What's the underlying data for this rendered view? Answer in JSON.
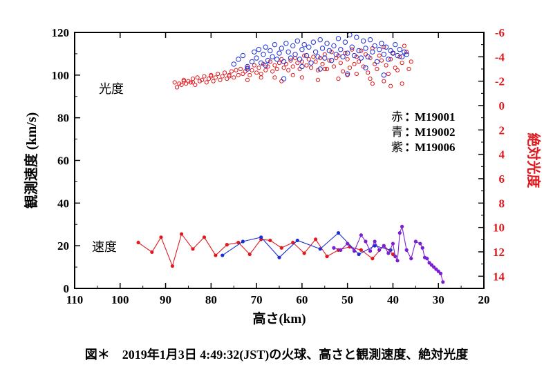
{
  "chart_data": {
    "type": "scatter",
    "title": "",
    "xlabel": "高さ(km)",
    "ylabel": "観測速度 (km/s)",
    "y2label": "絶対光度",
    "xlim": [
      110,
      20
    ],
    "ylim": [
      0,
      120
    ],
    "y2lim": [
      -6,
      15
    ],
    "y2_inverted": true,
    "xticks": [
      "110",
      "100",
      "90",
      "80",
      "70",
      "60",
      "50",
      "40",
      "30",
      "20"
    ],
    "yticks": [
      "0",
      "20",
      "40",
      "60",
      "80",
      "100",
      "120"
    ],
    "y2ticks": [
      "-6",
      "-4",
      "-2",
      "0",
      "2",
      "4",
      "6",
      "8",
      "10",
      "12",
      "14"
    ],
    "annotations": {
      "brightness": "光度",
      "speed": "速度"
    },
    "legend": [
      {
        "label": "赤",
        "sep": "：",
        "name": "M19001",
        "color": "#e0191e"
      },
      {
        "label": "青",
        "sep": "：",
        "name": "M19002",
        "color": "#1b2fd6"
      },
      {
        "label": "紫",
        "sep": "：",
        "name": "M19006",
        "color": "#7a1fd4"
      }
    ],
    "colors": {
      "red": "#e0191e",
      "blue": "#1b2fd6",
      "purple": "#7a1fd4",
      "axis_right": "#e0191e"
    },
    "series": [
      {
        "name": "M19001 speed",
        "axis": "left",
        "kind": "line-marker",
        "color": "#e0191e",
        "x": [
          96,
          93,
          91,
          88.5,
          86.5,
          84,
          81.5,
          79,
          76.5,
          74,
          71.5,
          69,
          67,
          64.5,
          62,
          59.5,
          57,
          54.5,
          52,
          49.5,
          47,
          44.5,
          42,
          40
        ],
        "y": [
          21.5,
          17,
          24,
          10.5,
          25.5,
          18.5,
          24,
          15.5,
          20.5,
          21.5,
          16,
          23,
          22.5,
          19,
          21.5,
          16.5,
          23,
          15,
          18,
          19.5,
          18,
          14,
          20,
          16
        ]
      },
      {
        "name": "M19002 speed",
        "axis": "left",
        "kind": "line-marker",
        "color": "#1b2fd6",
        "x": [
          77.5,
          73,
          69,
          65,
          61,
          56,
          52,
          47.5,
          44,
          40.5
        ],
        "y": [
          15.5,
          22,
          24,
          14.5,
          22.5,
          18.5,
          26,
          16,
          20,
          18
        ]
      },
      {
        "name": "M19006 speed",
        "axis": "left",
        "kind": "line-marker",
        "color": "#7a1fd4",
        "x": [
          53,
          51.5,
          50,
          48.5,
          47,
          46,
          45,
          44,
          43,
          42,
          41,
          40,
          39.5,
          39,
          38.5,
          38,
          37,
          36,
          35,
          34,
          33.5,
          33,
          32.5,
          32,
          31.5,
          31,
          30.5,
          30,
          29.5,
          29
        ],
        "y": [
          19,
          18,
          21,
          17.5,
          25,
          22,
          17.5,
          22,
          18,
          20,
          16.5,
          21,
          15,
          13,
          26,
          29,
          18,
          14,
          22,
          21,
          19,
          14.5,
          14,
          12,
          11,
          10,
          9,
          8,
          7,
          3
        ]
      },
      {
        "name": "M19001 brightness",
        "axis": "right",
        "kind": "open-circle",
        "color": "#e0191e",
        "x": [
          88,
          87.5,
          87,
          86.5,
          86,
          85.5,
          85,
          84.5,
          84,
          83.5,
          83,
          82.5,
          82,
          81.5,
          81,
          80.5,
          80,
          79.5,
          79,
          78.5,
          78,
          77.5,
          77,
          76.5,
          76,
          75.5,
          75,
          74.5,
          74,
          73.5,
          73,
          72.5,
          72,
          71.5,
          71,
          70.5,
          70,
          69.5,
          69,
          68.5,
          68,
          67.5,
          67,
          66.5,
          66,
          65.5,
          65,
          64.5,
          64,
          63.5,
          63,
          62.5,
          62,
          61.5,
          61,
          60.5,
          60,
          59.5,
          59,
          58.5,
          58,
          57.5,
          57,
          56.5,
          56,
          55.5,
          55,
          54.5,
          54,
          53.5,
          53,
          52.5,
          52,
          51.5,
          51,
          50.5,
          50,
          49.5,
          49,
          48.5,
          48,
          47.5,
          47,
          46.5,
          46,
          45.5,
          45,
          44.5,
          44,
          43.5,
          43,
          42.5,
          42,
          41.5,
          41,
          40.5,
          40,
          39.5,
          39,
          38.5,
          38,
          37.5,
          37,
          36.5,
          36,
          55,
          50,
          45,
          66,
          72,
          80,
          84,
          60,
          42,
          38,
          48,
          52,
          62,
          69,
          76,
          86,
          40.5,
          44.5,
          56.5,
          64.5
        ],
        "y": [
          -1.9,
          -1.5,
          -1.8,
          -1.7,
          -2.1,
          -1.8,
          -2.0,
          -1.9,
          -2.2,
          -1.7,
          -2.3,
          -2.0,
          -2.1,
          -2.4,
          -1.9,
          -2.2,
          -2.5,
          -2.0,
          -2.3,
          -2.6,
          -2.1,
          -2.4,
          -2.7,
          -2.2,
          -2.5,
          -2.8,
          -2.3,
          -2.9,
          -2.5,
          -3.0,
          -2.6,
          -2.8,
          -3.1,
          -2.5,
          -2.9,
          -3.3,
          -2.7,
          -3.1,
          -2.6,
          -3.4,
          -2.9,
          -3.2,
          -3.6,
          -2.8,
          -3.3,
          -3.0,
          -3.5,
          -3.8,
          -3.1,
          -3.4,
          -2.9,
          -3.7,
          -3.2,
          -3.9,
          -3.5,
          -3.0,
          -3.6,
          -4.1,
          -3.3,
          -3.8,
          -3.1,
          -4.0,
          -3.6,
          -2.9,
          -3.9,
          -3.4,
          -4.2,
          -3.0,
          -3.7,
          -4.4,
          -3.2,
          -3.9,
          -4.1,
          -3.5,
          -2.8,
          -4.3,
          -3.8,
          -3.1,
          -4.6,
          -3.4,
          -4.0,
          -3.6,
          -4.5,
          -3.2,
          -4.2,
          -2.7,
          -3.9,
          -4.7,
          -3.4,
          -3.0,
          -4.1,
          -3.7,
          -4.8,
          -3.3,
          -2.6,
          -3.8,
          -4.3,
          -3.1,
          -2.9,
          -4.0,
          -3.5,
          -4.9,
          -4.4,
          -3.0,
          -3.6,
          -3.0,
          -2.5,
          -2.2,
          -2.3,
          -2.1,
          -2.4,
          -1.9,
          -2.3,
          -2.0,
          -1.8,
          -2.6,
          -2.2,
          -2.5,
          -2.3,
          -2.4,
          -2.0,
          -1.6,
          -1.8,
          -2.1,
          -2.0
        ],
        "size": "small"
      },
      {
        "name": "M19002 brightness",
        "axis": "right",
        "kind": "open-circle",
        "color": "#1b2fd6",
        "x": [
          75,
          74,
          73,
          72,
          71,
          70.5,
          70,
          69.5,
          69,
          68.5,
          68,
          67.5,
          67,
          66.5,
          66,
          65.5,
          65,
          64.5,
          64,
          63.5,
          63,
          62.5,
          62,
          61.5,
          61,
          60.5,
          60,
          59.5,
          59,
          58.5,
          58,
          57.5,
          57,
          56.5,
          56,
          55.5,
          55,
          54.5,
          54,
          53.5,
          53,
          52.5,
          52,
          51.5,
          51,
          50.5,
          50,
          49.5,
          49,
          48.5,
          48,
          47.5,
          47,
          46.5,
          46,
          45.5,
          45,
          44.5,
          44,
          43.5,
          43,
          42.5,
          42,
          41.5,
          41,
          40.5,
          40,
          39.5,
          39,
          38.5,
          38,
          37.5,
          37,
          64,
          60,
          56,
          50,
          46,
          42,
          68,
          72
        ],
        "y": [
          -3.4,
          -3.8,
          -4.1,
          -3.2,
          -3.6,
          -4.4,
          -3.9,
          -4.6,
          -3.5,
          -4.2,
          -4.8,
          -3.7,
          -4.5,
          -4.0,
          -5.0,
          -3.8,
          -4.3,
          -4.7,
          -3.6,
          -5.1,
          -4.4,
          -3.9,
          -4.9,
          -4.2,
          -5.3,
          -3.8,
          -4.6,
          -5.0,
          -4.1,
          -4.8,
          -3.5,
          -5.2,
          -4.4,
          -4.0,
          -5.4,
          -4.7,
          -3.9,
          -5.1,
          -4.5,
          -3.7,
          -4.9,
          -4.2,
          -5.5,
          -4.6,
          -4.0,
          -5.2,
          -4.3,
          -5.8,
          -4.8,
          -4.1,
          -5.6,
          -4.5,
          -3.9,
          -5.3,
          -4.7,
          -4.0,
          -5.4,
          -4.4,
          -4.9,
          -3.6,
          -4.6,
          -5.1,
          -4.2,
          -4.8,
          -3.8,
          -4.5,
          -4.3,
          -5.0,
          -4.1,
          -4.6,
          -4.0,
          -4.4,
          -4.2,
          -2.2,
          -3.2,
          -3.0,
          -2.6,
          -3.1,
          -2.5,
          -3.3,
          -3.0
        ],
        "size": "large"
      }
    ]
  },
  "caption": "図＊　2019年1月3日 4:49:32(JST)の火球、高さと観測速度、絶対光度"
}
